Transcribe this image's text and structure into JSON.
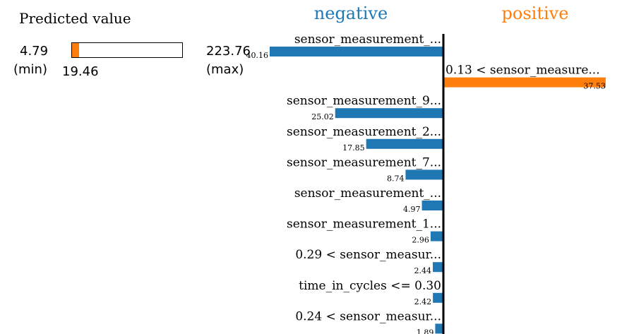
{
  "predicted": {
    "title": "Predicted value",
    "min": "4.79",
    "min_label": "(min)",
    "max": "223.76",
    "max_label": "(max)",
    "value": "19.46",
    "fraction": 0.067
  },
  "colors": {
    "negative": "#1f77b4",
    "positive": "#ff7f0e"
  },
  "chart_data": {
    "type": "bar",
    "headers": {
      "negative": "negative",
      "positive": "positive"
    },
    "features": [
      {
        "label": "sensor_measurement_...",
        "value": 40.16,
        "sign": "negative"
      },
      {
        "label": "0.13 < sensor_measure...",
        "value": 37.53,
        "sign": "positive"
      },
      {
        "label": "sensor_measurement_9...",
        "value": 25.02,
        "sign": "negative"
      },
      {
        "label": "sensor_measurement_2...",
        "value": 17.85,
        "sign": "negative"
      },
      {
        "label": "sensor_measurement_7...",
        "value": 8.74,
        "sign": "negative"
      },
      {
        "label": "sensor_measurement_...",
        "value": 4.97,
        "sign": "negative"
      },
      {
        "label": "sensor_measurement_1...",
        "value": 2.96,
        "sign": "negative"
      },
      {
        "label": "0.29 < sensor_measur...",
        "value": 2.44,
        "sign": "negative"
      },
      {
        "label": "time_in_cycles <= 0.30",
        "value": 2.42,
        "sign": "negative"
      },
      {
        "label": "0.24 < sensor_measur...",
        "value": 1.89,
        "sign": "negative"
      }
    ]
  }
}
